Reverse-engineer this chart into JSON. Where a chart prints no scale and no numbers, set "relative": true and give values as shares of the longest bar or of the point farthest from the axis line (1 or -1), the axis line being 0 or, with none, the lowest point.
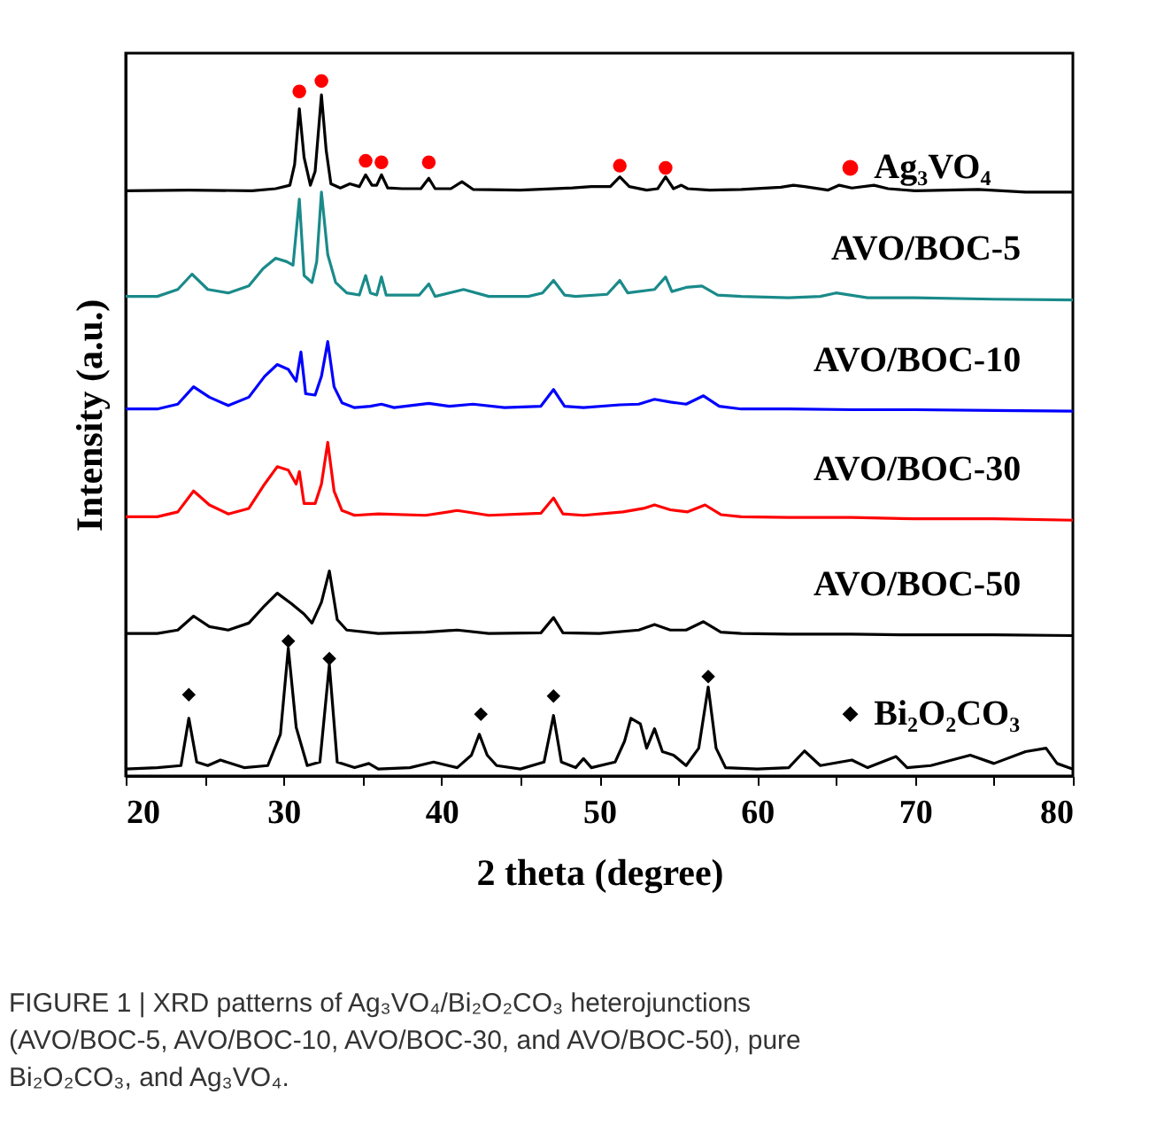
{
  "chart_data": {
    "type": "line",
    "relative": true,
    "legend": "right",
    "xlabel": "2 theta (degree)",
    "ylabel": "Intensity (a.u.)",
    "xlim": [
      20,
      80
    ],
    "xticks": [
      20,
      {
        "value": 25,
        "label": null
      },
      30,
      {
        "value": 35,
        "label": null
      },
      40,
      {
        "value": 45,
        "label": null
      },
      50,
      {
        "value": 55,
        "label": null
      },
      60,
      {
        "value": 65,
        "label": null
      },
      70,
      {
        "value": 75,
        "label": null
      },
      80
    ],
    "series": [
      {
        "color": "#000000",
        "marker": "none",
        "line_style": "solid",
        "x": [
          20,
          24,
          28,
          29.5,
          30.4,
          30.7,
          31.0,
          31.3,
          31.7,
          32.0,
          32.4,
          32.7,
          33.0,
          33.6,
          34.2,
          34.8,
          35.2,
          35.6,
          35.9,
          36.2,
          36.6,
          37.5,
          38.7,
          39.2,
          39.6,
          40.6,
          41.3,
          42.0,
          45,
          48.3,
          49.5,
          50.7,
          51.3,
          51.9,
          53.0,
          53.7,
          54.2,
          54.7,
          55.2,
          55.6,
          57,
          59,
          61.5,
          62.3,
          63,
          64.5,
          65.2,
          66,
          67.4,
          68.3,
          70,
          74,
          77,
          80
        ],
        "values": [
          0.842,
          0.843,
          0.842,
          0.845,
          0.85,
          0.88,
          0.96,
          0.89,
          0.85,
          0.87,
          0.98,
          0.9,
          0.852,
          0.846,
          0.852,
          0.848,
          0.865,
          0.85,
          0.85,
          0.865,
          0.846,
          0.845,
          0.845,
          0.86,
          0.845,
          0.845,
          0.855,
          0.844,
          0.843,
          0.846,
          0.848,
          0.848,
          0.862,
          0.848,
          0.843,
          0.845,
          0.862,
          0.845,
          0.85,
          0.845,
          0.843,
          0.844,
          0.847,
          0.85,
          0.848,
          0.843,
          0.85,
          0.846,
          0.85,
          0.845,
          0.842,
          0.844,
          0.84,
          0.84
        ]
      },
      {
        "type": "scatter",
        "name": "Ag₃VO₄",
        "color": "#ff0000",
        "marker": "circle",
        "x": [
          31.0,
          32.4,
          35.2,
          36.2,
          39.2,
          51.3,
          54.2
        ],
        "values": [
          0.985,
          1.0,
          0.885,
          0.883,
          0.883,
          0.878,
          0.875
        ]
      },
      {
        "name": "AVO/BOC-5",
        "color": "#1a8a8a",
        "marker": "none",
        "line_style": "solid",
        "x": [
          20,
          22,
          23.3,
          24.2,
          25.2,
          26.5,
          27.8,
          28.7,
          29.5,
          30.2,
          30.6,
          31.0,
          31.3,
          31.8,
          32.1,
          32.4,
          32.8,
          33.3,
          34,
          34.8,
          35.2,
          35.5,
          35.9,
          36.2,
          36.5,
          38.6,
          39.2,
          39.6,
          41.4,
          43,
          45.5,
          46.4,
          47.1,
          47.8,
          48.5,
          50.5,
          51.3,
          51.8,
          53.5,
          54.2,
          54.6,
          55.5,
          56.5,
          57.5,
          59,
          62,
          64,
          65,
          67,
          70,
          75,
          80
        ],
        "values": [
          0.69,
          0.69,
          0.7,
          0.722,
          0.7,
          0.695,
          0.705,
          0.73,
          0.745,
          0.74,
          0.735,
          0.83,
          0.72,
          0.71,
          0.74,
          0.84,
          0.75,
          0.71,
          0.695,
          0.692,
          0.72,
          0.695,
          0.692,
          0.718,
          0.692,
          0.692,
          0.708,
          0.69,
          0.7,
          0.69,
          0.69,
          0.695,
          0.713,
          0.692,
          0.69,
          0.693,
          0.713,
          0.695,
          0.7,
          0.718,
          0.697,
          0.703,
          0.705,
          0.692,
          0.69,
          0.688,
          0.69,
          0.695,
          0.688,
          0.688,
          0.686,
          0.685
        ]
      },
      {
        "name": "AVO/BOC-10",
        "color": "#0000ff",
        "marker": "none",
        "line_style": "solid",
        "x": [
          20,
          22,
          23.3,
          24.3,
          25.3,
          26.5,
          27.8,
          28.8,
          29.6,
          30.3,
          30.8,
          31.1,
          31.4,
          32.0,
          32.4,
          32.8,
          33.2,
          33.7,
          34.5,
          35.5,
          36.2,
          37,
          39.2,
          40.5,
          42,
          44,
          46.3,
          47.1,
          47.8,
          49,
          51.3,
          52.5,
          53.5,
          54.5,
          55.5,
          56.6,
          57.6,
          59,
          62,
          66,
          70,
          75,
          80
        ],
        "values": [
          0.528,
          0.528,
          0.535,
          0.56,
          0.545,
          0.533,
          0.545,
          0.575,
          0.592,
          0.585,
          0.568,
          0.61,
          0.55,
          0.548,
          0.575,
          0.625,
          0.56,
          0.537,
          0.53,
          0.532,
          0.535,
          0.53,
          0.536,
          0.532,
          0.535,
          0.53,
          0.532,
          0.556,
          0.532,
          0.53,
          0.534,
          0.535,
          0.542,
          0.538,
          0.535,
          0.547,
          0.532,
          0.528,
          0.528,
          0.527,
          0.527,
          0.526,
          0.525
        ]
      },
      {
        "name": "AVO/BOC-30",
        "color": "#ff0000",
        "marker": "none",
        "line_style": "solid",
        "x": [
          20,
          22,
          23.3,
          24.3,
          25.3,
          26.5,
          27.8,
          28.8,
          29.6,
          30.3,
          30.8,
          31.0,
          31.3,
          32.0,
          32.4,
          32.8,
          33.2,
          33.7,
          34.5,
          36,
          39,
          41,
          43,
          46.3,
          47.1,
          47.7,
          49,
          51.5,
          52.8,
          53.5,
          54.5,
          55.6,
          56.7,
          57.7,
          59,
          62,
          66,
          70,
          75,
          80
        ],
        "values": [
          0.373,
          0.373,
          0.38,
          0.41,
          0.39,
          0.377,
          0.385,
          0.42,
          0.445,
          0.44,
          0.42,
          0.438,
          0.392,
          0.392,
          0.42,
          0.48,
          0.41,
          0.382,
          0.375,
          0.377,
          0.375,
          0.382,
          0.375,
          0.378,
          0.4,
          0.377,
          0.375,
          0.38,
          0.385,
          0.39,
          0.383,
          0.38,
          0.39,
          0.376,
          0.373,
          0.372,
          0.372,
          0.37,
          0.37,
          0.368
        ]
      },
      {
        "name": "AVO/BOC-50",
        "color": "#000000",
        "marker": "none",
        "line_style": "solid",
        "x": [
          20,
          22,
          23.3,
          24.3,
          25.3,
          26.5,
          27.8,
          28.8,
          29.6,
          30.5,
          31.3,
          31.8,
          32.4,
          32.9,
          33.4,
          34,
          36,
          39,
          41,
          43,
          46.3,
          47.1,
          47.7,
          50,
          52.5,
          53.5,
          54.5,
          55.5,
          56.6,
          57.7,
          59,
          62,
          66,
          70,
          75,
          80
        ],
        "values": [
          0.205,
          0.205,
          0.21,
          0.23,
          0.215,
          0.21,
          0.22,
          0.245,
          0.263,
          0.248,
          0.233,
          0.22,
          0.25,
          0.295,
          0.225,
          0.21,
          0.205,
          0.207,
          0.21,
          0.205,
          0.206,
          0.228,
          0.206,
          0.205,
          0.21,
          0.218,
          0.21,
          0.21,
          0.222,
          0.207,
          0.205,
          0.204,
          0.204,
          0.203,
          0.203,
          0.202
        ]
      },
      {
        "color": "#000000",
        "marker": "none",
        "line_style": "solid",
        "x": [
          20,
          22,
          23.5,
          24.0,
          24.5,
          25.2,
          26,
          27.5,
          29,
          29.8,
          30.3,
          30.8,
          31.5,
          32.3,
          32.9,
          33.4,
          34.5,
          35.4,
          36,
          38,
          39.5,
          41,
          41.9,
          42.4,
          42.9,
          43.5,
          45,
          46.5,
          47.1,
          47.6,
          48.5,
          49,
          49.5,
          51,
          51.6,
          52.0,
          52.6,
          53.0,
          53.5,
          54.0,
          54.7,
          55.5,
          56.3,
          56.9,
          57.4,
          58,
          60,
          62,
          63,
          64,
          66,
          67,
          68.8,
          69.5,
          71,
          73.5,
          75,
          77,
          78.3,
          79,
          80
        ],
        "values": [
          0.01,
          0.012,
          0.015,
          0.083,
          0.02,
          0.015,
          0.023,
          0.012,
          0.015,
          0.06,
          0.184,
          0.07,
          0.015,
          0.02,
          0.16,
          0.02,
          0.012,
          0.018,
          0.01,
          0.012,
          0.02,
          0.012,
          0.03,
          0.06,
          0.03,
          0.015,
          0.01,
          0.02,
          0.087,
          0.02,
          0.012,
          0.025,
          0.012,
          0.02,
          0.05,
          0.083,
          0.075,
          0.04,
          0.068,
          0.035,
          0.03,
          0.015,
          0.04,
          0.128,
          0.04,
          0.012,
          0.01,
          0.012,
          0.036,
          0.015,
          0.023,
          0.012,
          0.028,
          0.012,
          0.015,
          0.03,
          0.018,
          0.035,
          0.04,
          0.018,
          0.01
        ]
      },
      {
        "type": "scatter",
        "name": "Bi₂O₂CO₃",
        "color": "#000000",
        "marker": "diamond",
        "x": [
          24.0,
          30.3,
          32.9,
          42.5,
          47.1,
          56.9
        ],
        "values": [
          0.117,
          0.194,
          0.169,
          0.089,
          0.115,
          0.143
        ]
      }
    ],
    "annotations": [
      "FIGURE 1 | XRD patterns of Ag₃VO₄/Bi₂O₂CO₃ heterojunctions (AVO/BOC-5, AVO/BOC-10, AVO/BOC-30, and AVO/BOC-50), pure Bi₂O₂CO₃, and Ag₃VO₄."
    ]
  }
}
